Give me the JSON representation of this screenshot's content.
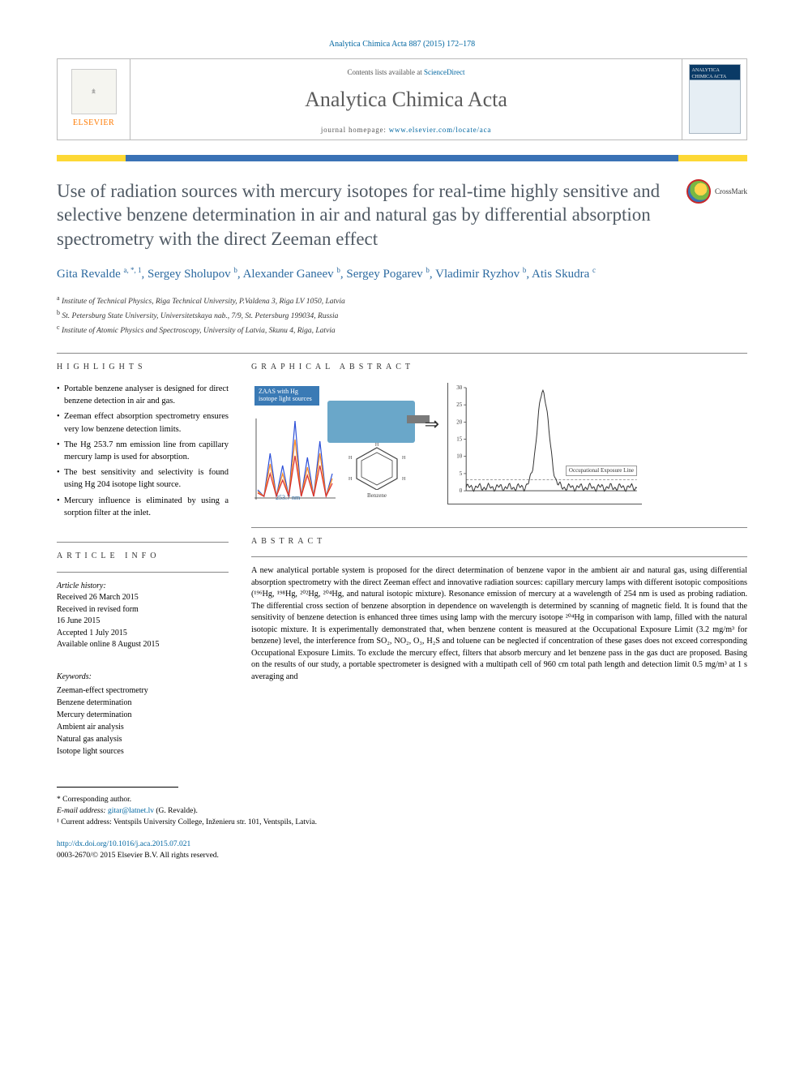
{
  "citation": "Analytica Chimica Acta 887 (2015) 172–178",
  "header": {
    "publisher": "ELSEVIER",
    "contents_prefix": "Contents lists available at ",
    "contents_link": "ScienceDirect",
    "journal": "Analytica Chimica Acta",
    "homepage_prefix": "journal homepage: ",
    "homepage_url": "www.elsevier.com/locate/aca",
    "cover_label": "ANALYTICA CHIMICA ACTA"
  },
  "colorbar": {
    "c1": "#fdd835",
    "c2": "#3a72b5",
    "c3": "#fdd835"
  },
  "title": "Use of radiation sources with mercury isotopes for real-time highly sensitive and selective benzene determination in air and natural gas by differential absorption spectrometry with the direct Zeeman effect",
  "crossmark": "CrossMark",
  "authors_html": "Gita Revalde <sup>a, *, 1</sup>, Sergey Sholupov <sup>b</sup>, Alexander Ganeev <sup>b</sup>, Sergey Pogarev <sup>b</sup>, Vladimir Ryzhov <sup>b</sup>, Atis Skudra <sup>c</sup>",
  "authors": [
    {
      "name": "Gita Revalde",
      "aff": "a, *, 1"
    },
    {
      "name": "Sergey Sholupov",
      "aff": "b"
    },
    {
      "name": "Alexander Ganeev",
      "aff": "b"
    },
    {
      "name": "Sergey Pogarev",
      "aff": "b"
    },
    {
      "name": "Vladimir Ryzhov",
      "aff": "b"
    },
    {
      "name": "Atis Skudra",
      "aff": "c"
    }
  ],
  "affiliations": [
    {
      "sup": "a",
      "text": "Institute of Technical Physics, Riga Technical University, P.Valdena 3, Riga LV 1050, Latvia"
    },
    {
      "sup": "b",
      "text": "St. Petersburg State University, Universitetskaya nab., 7/9, St. Petersburg 199034, Russia"
    },
    {
      "sup": "c",
      "text": "Institute of Atomic Physics and Spectroscopy, University of Latvia, Skunu 4, Riga, Latvia"
    }
  ],
  "sections": {
    "highlights": "HIGHLIGHTS",
    "graphical_abstract": "GRAPHICAL ABSTRACT",
    "article_info": "ARTICLE INFO",
    "abstract": "ABSTRACT"
  },
  "highlights": [
    "Portable benzene analyser is designed for direct benzene detection in air and gas.",
    "Zeeman effect absorption spectrometry ensures very low benzene detection limits.",
    "The Hg 253.7 nm emission line from capillary mercury lamp is used for absorption.",
    "The best sensitivity and selectivity is found using Hg 204 isotope light source.",
    "Mercury influence is eliminated by using a sorption filter at the inlet."
  ],
  "article_info": {
    "history_label": "Article history:",
    "history": [
      "Received 26 March 2015",
      "Received in revised form",
      "16 June 2015",
      "Accepted 1 July 2015",
      "Available online 8 August 2015"
    ],
    "keywords_label": "Keywords:",
    "keywords": [
      "Zeeman-effect spectrometry",
      "Benzene determination",
      "Mercury determination",
      "Ambient air analysis",
      "Natural gas analysis",
      "Isotope light sources"
    ]
  },
  "graphical_abstract": {
    "badge_text": "ZAAS with Hg isotope light sources",
    "wavelength_label": "253.7 nm",
    "molecule_label": "Benzene",
    "oel_label": "Occupational Exposure Line",
    "left_spectrum": {
      "series": [
        {
          "color": "#2c4fd8",
          "peaks": [
            10,
            55,
            40,
            95,
            50,
            70,
            30
          ]
        },
        {
          "color": "#ff8a1f",
          "peaks": [
            8,
            42,
            30,
            72,
            38,
            55,
            24
          ]
        },
        {
          "color": "#d82c2c",
          "peaks": [
            6,
            30,
            22,
            52,
            28,
            40,
            18
          ]
        }
      ],
      "x_range": [
        252,
        255
      ]
    },
    "right_chart": {
      "type": "line",
      "ylim": [
        0,
        30
      ],
      "ytick_step": 5,
      "xlim": [
        0,
        100
      ],
      "oel_y": 3.2,
      "baseline_noise_amp": 1.2,
      "peak": {
        "x": 45,
        "height": 28,
        "width": 8
      },
      "line_color": "#333333",
      "grid_color": "#e0e0e0",
      "axis_fontsize": 7
    }
  },
  "abstract": "A new analytical portable system is proposed for the direct determination of benzene vapor in the ambient air and natural gas, using differential absorption spectrometry with the direct Zeeman effect and innovative radiation sources: capillary mercury lamps with different isotopic compositions (¹⁹⁶Hg, ¹⁹⁸Hg, ²⁰²Hg, ²⁰⁴Hg, and natural isotopic mixture). Resonance emission of mercury at a wavelength of 254 nm is used as probing radiation. The differential cross section of benzene absorption in dependence on wavelength is determined by scanning of magnetic field. It is found that the sensitivity of benzene detection is enhanced three times using lamp with the mercury isotope ²⁰⁴Hg in comparison with lamp, filled with the natural isotopic mixture. It is experimentally demonstrated that, when benzene content is measured at the Occupational Exposure Limit (3.2 mg/m³ for benzene) level, the interference from SO₂, NO₂, O₃, H₂S and toluene can be neglected if concentration of these gases does not exceed corresponding Occupational Exposure Limits. To exclude the mercury effect, filters that absorb mercury and let benzene pass in the gas duct are proposed. Basing on the results of our study, a portable spectrometer is designed with a multipath cell of 960 cm total path length and detection limit 0.5 mg/m³ at 1 s averaging and",
  "footnotes": {
    "corresponding": "* Corresponding author.",
    "email_label": "E-mail address:",
    "email": "gitar@latnet.lv",
    "email_who": "(G. Revalde).",
    "current_addr": "¹ Current address: Ventspils University College, Inženieru str. 101, Ventspils, Latvia."
  },
  "doi": {
    "url": "http://dx.doi.org/10.1016/j.aca.2015.07.021",
    "issn_line": "0003-2670/© 2015 Elsevier B.V. All rights reserved."
  }
}
